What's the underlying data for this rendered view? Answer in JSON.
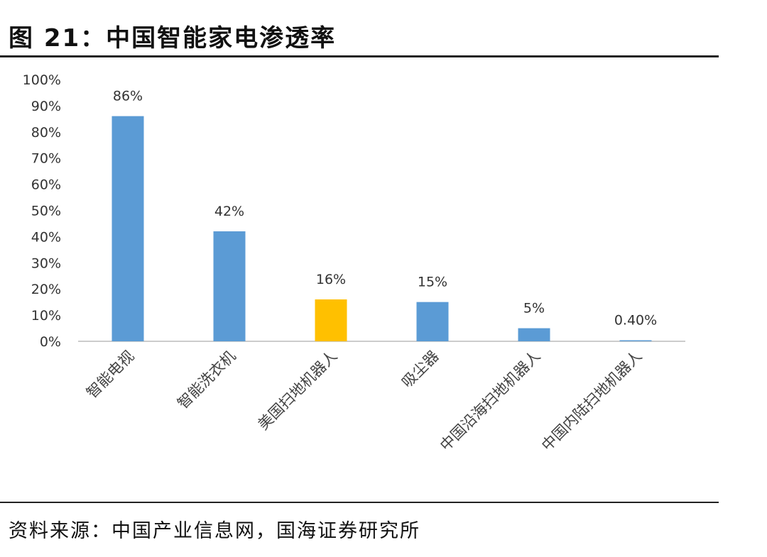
{
  "title": "图 21：中国智能家电渗透率",
  "source": "资料来源：中国产业信息网，国海证券研究所",
  "chart_data": {
    "type": "bar",
    "title": "",
    "xlabel": "",
    "ylabel": "",
    "ylim": [
      0,
      100
    ],
    "yticks": [
      "0%",
      "10%",
      "20%",
      "30%",
      "40%",
      "50%",
      "60%",
      "70%",
      "80%",
      "90%",
      "100%"
    ],
    "grid": false,
    "legend": "none",
    "categories": [
      "智能电视",
      "智能洗衣机",
      "美国扫地机器人",
      "吸尘器",
      "中国沿海扫地机器人",
      "中国内陆扫地机器人"
    ],
    "values": [
      86,
      42,
      16,
      15,
      5,
      0.4
    ],
    "data_labels": [
      "86%",
      "42%",
      "16%",
      "15%",
      "5%",
      "0.40%"
    ],
    "colors": [
      "#5B9BD5",
      "#5B9BD5",
      "#FFC000",
      "#5B9BD5",
      "#5B9BD5",
      "#5B9BD5"
    ]
  }
}
